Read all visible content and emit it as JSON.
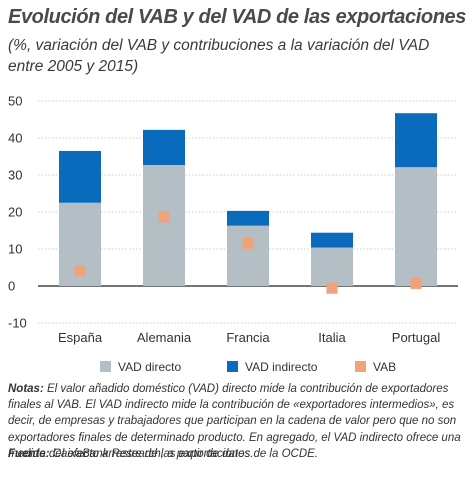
{
  "title": "Evolución del VAB y del VAD de las exportaciones",
  "subtitle": "(%, variación del VAB y contribuciones a la variación del VAD entre 2005 y 2015)",
  "colors": {
    "direct": "#b3bfc4",
    "indirect": "#0a6bbd",
    "vab": "#f0a27a",
    "axis": "#222222",
    "grid": "#cccccc"
  },
  "chart_data": {
    "type": "bar",
    "stacked": true,
    "categories": [
      "España",
      "Alemania",
      "Francia",
      "Italia",
      "Portugal"
    ],
    "series": [
      {
        "name": "VAD directo",
        "kind": "bar",
        "values": [
          22.5,
          32.7,
          16.3,
          10.4,
          32.1
        ]
      },
      {
        "name": "VAD indirecto",
        "kind": "bar",
        "values": [
          14.0,
          9.5,
          4.0,
          4.0,
          14.6
        ]
      },
      {
        "name": "VAB",
        "kind": "marker",
        "values": [
          4.1,
          18.7,
          11.5,
          -0.6,
          0.7
        ]
      }
    ],
    "ylim": [
      -10,
      50
    ],
    "yticks": [
      -10,
      0,
      10,
      20,
      30,
      40,
      50
    ],
    "grid": true,
    "legend_position": "bottom"
  },
  "notes": {
    "label": "Notas:",
    "text": " El valor añadido doméstico (VAD) directo mide la contribución de exportadores finales al VAB. El VAD indirecto mide la contribución de «exportadores intermedios», es decir, de empresas y trabajadores que participan en la cadena de valor pero que no son exportadores finales de determinado producto. En agregado, el VAD indirecto ofrece una medida del efecto arrastre de las exportaciones."
  },
  "source": {
    "label": "Fuente:",
    "text": " CaixaBank Research, a partir de datos de la OCDE."
  }
}
